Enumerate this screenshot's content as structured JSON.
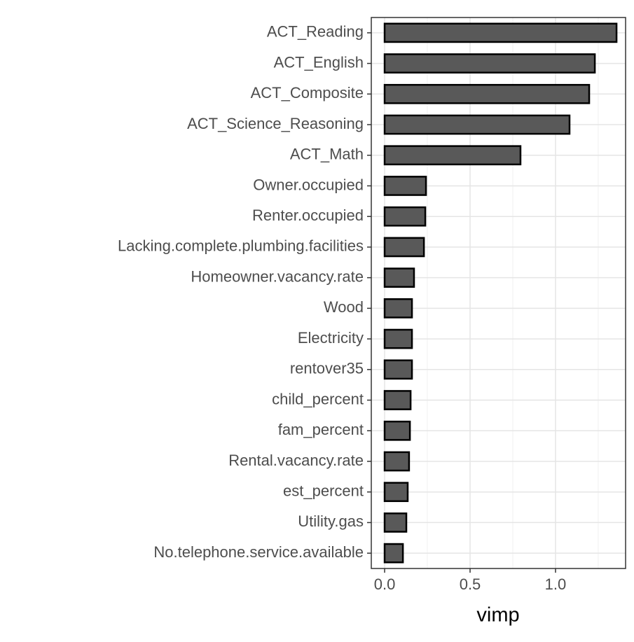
{
  "chart_data": {
    "type": "barh",
    "x_label": "vimp",
    "categories": [
      "ACT_Reading",
      "ACT_English",
      "ACT_Composite",
      "ACT_Science_Reasoning",
      "ACT_Math",
      "Owner.occupied",
      "Renter.occupied",
      "Lacking.complete.plumbing.facilities",
      "Homeowner.vacancy.rate",
      "Wood",
      "Electricity",
      "rentover35",
      "child_percent",
      "fam_percent",
      "Rental.vacancy.rate",
      "est_percent",
      "Utility.gas",
      "No.telephone.service.available"
    ],
    "values": [
      1.357,
      1.23,
      1.197,
      1.082,
      0.795,
      0.242,
      0.238,
      0.23,
      0.172,
      0.16,
      0.16,
      0.16,
      0.152,
      0.148,
      0.143,
      0.135,
      0.127,
      0.107
    ],
    "color": "#595959",
    "xlim": [
      -0.078,
      1.41
    ],
    "xticks": [
      {
        "value": 0,
        "label": "0.0"
      },
      {
        "value": 0.5,
        "label": "0.5"
      },
      {
        "value": 1,
        "label": "1.0"
      }
    ],
    "xminor": [
      0.25,
      0.75,
      1.25
    ],
    "grid": true
  }
}
